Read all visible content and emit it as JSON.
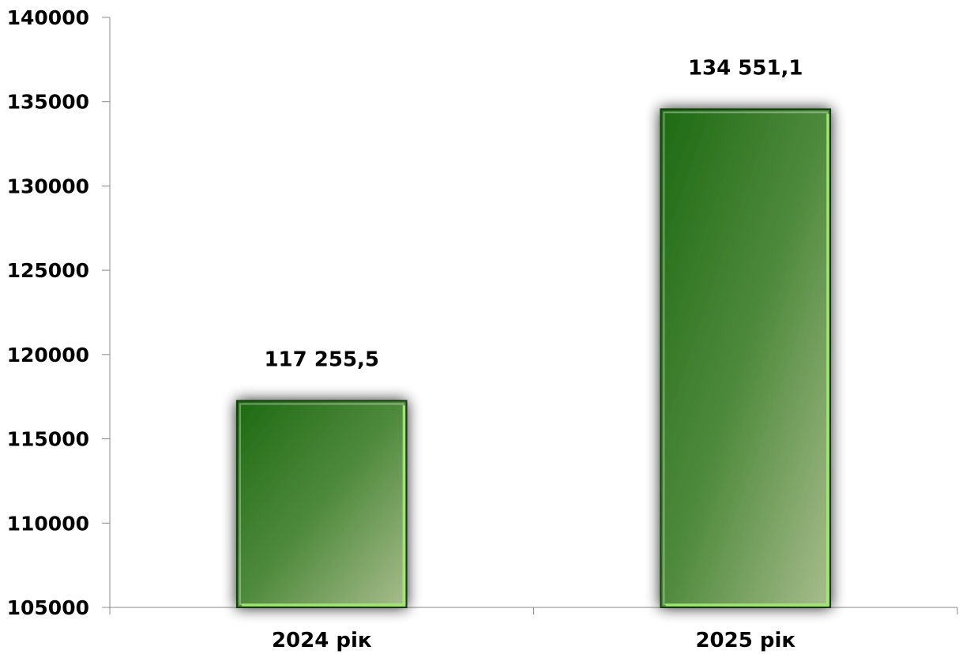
{
  "chart_data": {
    "type": "bar",
    "categories": [
      "2024 рік",
      "2025 рік"
    ],
    "values": [
      117255.5,
      134551.1
    ],
    "data_labels": [
      "117 255,5",
      "134 551,1"
    ],
    "ylim": [
      105000,
      140000
    ],
    "yticks": [
      105000,
      110000,
      115000,
      120000,
      125000,
      130000,
      135000,
      140000
    ],
    "ytick_labels": [
      "105000",
      "110000",
      "115000",
      "120000",
      "125000",
      "130000",
      "135000",
      "140000"
    ],
    "title": "",
    "xlabel": "",
    "ylabel": "",
    "grid": false,
    "legend": "none",
    "colors": {
      "bar_dark": "#1e6a14",
      "bar_mid": "#4f8a3c",
      "bar_light": "#a9bd8e",
      "bar_edge_highlight": "#9be86a",
      "axis": "#888888",
      "text": "#000000"
    }
  }
}
